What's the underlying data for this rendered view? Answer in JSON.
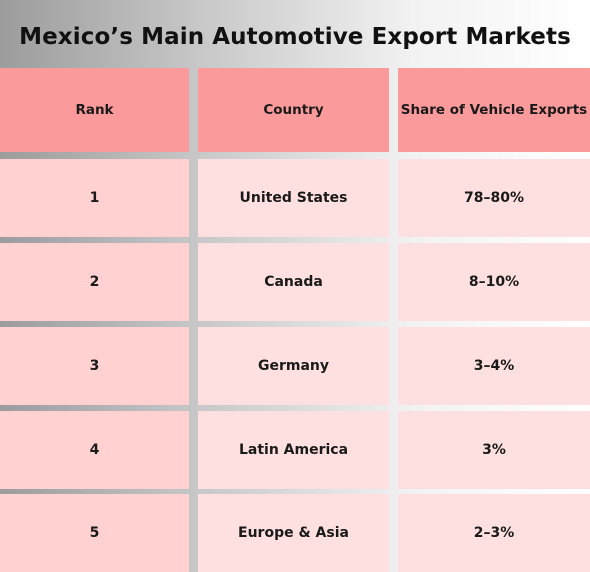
{
  "chart_data": {
    "type": "table",
    "title": "Mexico’s Main Automotive Export Markets",
    "columns": [
      "Rank",
      "Country",
      "Share of Vehicle Exports"
    ],
    "rows": [
      {
        "rank": "1",
        "country": "United States",
        "share": "78–80%"
      },
      {
        "rank": "2",
        "country": "Canada",
        "share": "8–10%"
      },
      {
        "rank": "3",
        "country": "Germany",
        "share": "3–4%"
      },
      {
        "rank": "4",
        "country": "Latin America",
        "share": "3%"
      },
      {
        "rank": "5",
        "country": "Europe & Asia",
        "share": "2–3%"
      }
    ],
    "colors": {
      "header": "#fb9a9a",
      "rank_cell": "#ffd1d1",
      "body_cell": "#ffe0e0"
    }
  }
}
